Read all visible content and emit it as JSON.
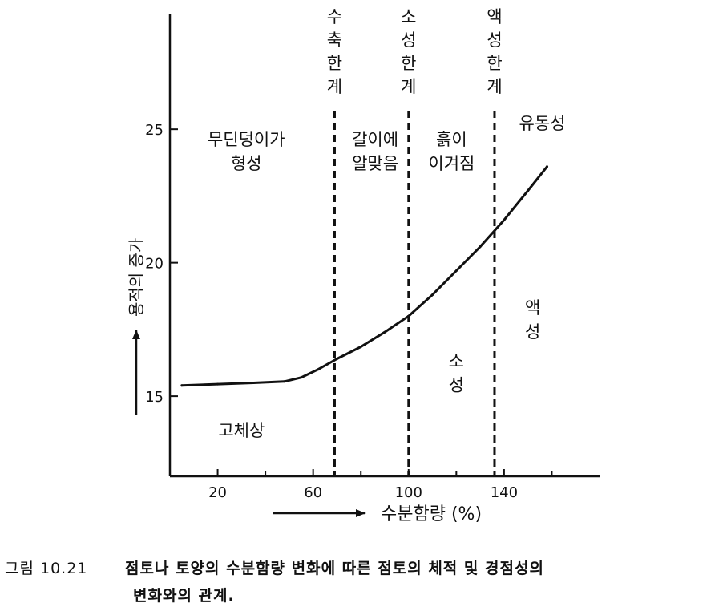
{
  "chart_data": {
    "type": "line",
    "title": "",
    "xlabel": "수분함량 (%)",
    "ylabel": "용적의 증가",
    "xlim": [
      0,
      180
    ],
    "ylim": [
      12,
      29.3
    ],
    "x_ticks": [
      20,
      60,
      100,
      140
    ],
    "x_minor_ticks": [
      40,
      80,
      120,
      160
    ],
    "y_ticks": [
      15,
      20,
      25
    ],
    "series": [
      {
        "values": [
          {
            "x": 5,
            "y": 15.4
          },
          {
            "x": 20,
            "y": 15.45
          },
          {
            "x": 35,
            "y": 15.5
          },
          {
            "x": 48,
            "y": 15.55
          },
          {
            "x": 55,
            "y": 15.7
          },
          {
            "x": 62,
            "y": 16.0
          },
          {
            "x": 70,
            "y": 16.4
          },
          {
            "x": 80,
            "y": 16.85
          },
          {
            "x": 90,
            "y": 17.4
          },
          {
            "x": 100,
            "y": 18.0
          },
          {
            "x": 110,
            "y": 18.8
          },
          {
            "x": 120,
            "y": 19.7
          },
          {
            "x": 130,
            "y": 20.6
          },
          {
            "x": 140,
            "y": 21.6
          },
          {
            "x": 150,
            "y": 22.7
          },
          {
            "x": 158,
            "y": 23.6
          }
        ]
      }
    ],
    "limits": [
      {
        "x": 69,
        "label": "수축한계"
      },
      {
        "x": 100,
        "label": "소성한계"
      },
      {
        "x": 136,
        "label": "액성한계"
      }
    ],
    "region_labels": [
      {
        "text": "무딘덩이가\n형성",
        "x": 32,
        "y": 24.4
      },
      {
        "text": "갈이에\n알맞음",
        "x": 86,
        "y": 24.4
      },
      {
        "text": "흙이\n이겨짐",
        "x": 118,
        "y": 24.4
      },
      {
        "text": "유동성",
        "x": 156,
        "y": 25.0
      },
      {
        "text": "고체상",
        "x": 30,
        "y": 13.5
      },
      {
        "text": "소\n성",
        "x": 120,
        "y": 16.1
      },
      {
        "text": "액\n성",
        "x": 152,
        "y": 18.1
      }
    ],
    "grid": false,
    "legend": "none"
  },
  "caption": {
    "figure_number": "그림 10.21",
    "line1": "점토나 토양의 수분함량 변화에 따른 점토의 체적 및 경점성의",
    "line2": "변화와의 관계."
  }
}
